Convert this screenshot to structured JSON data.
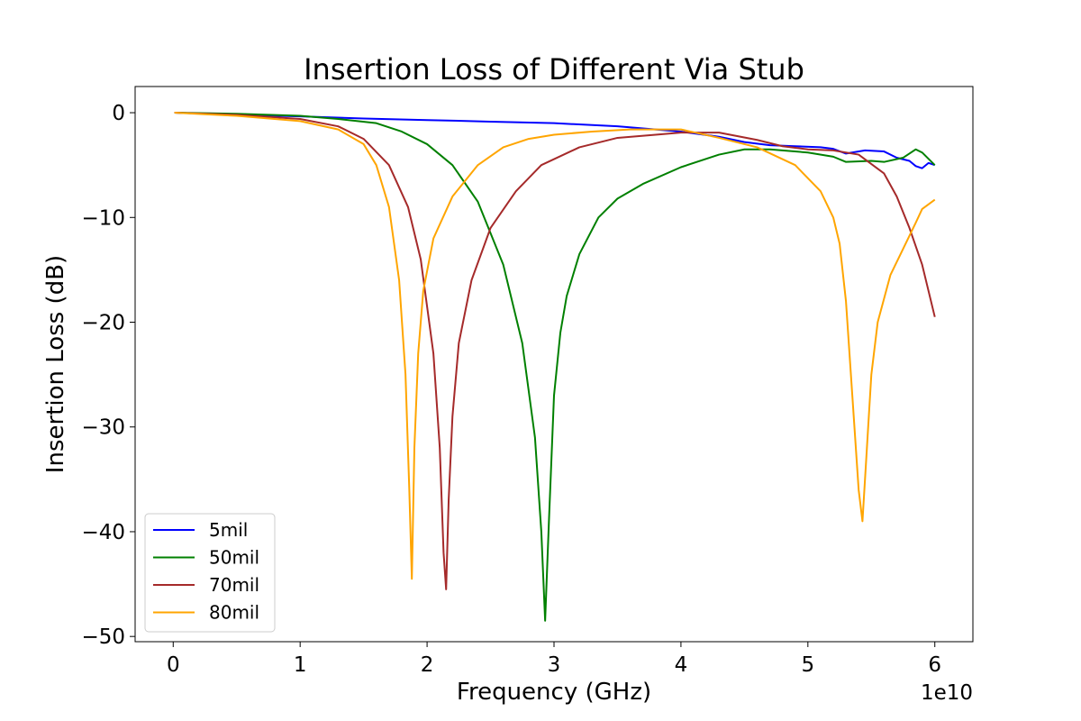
{
  "chart_data": {
    "type": "line",
    "title": "Insertion Loss of Different Via Stub",
    "xlabel": "Frequency (GHz)",
    "ylabel": "Insertion Loss (dB)",
    "x_offset_label": "1e10",
    "xlim": [
      -0.3,
      6.3
    ],
    "ylim": [
      -50.5,
      2.5
    ],
    "xticks": [
      0,
      1,
      2,
      3,
      4,
      5,
      6
    ],
    "xtick_labels": [
      "0",
      "1",
      "2",
      "3",
      "4",
      "5",
      "6"
    ],
    "yticks": [
      0,
      -10,
      -20,
      -30,
      -40,
      -50
    ],
    "ytick_labels": [
      "0",
      "−10",
      "−20",
      "−30",
      "−40",
      "−50"
    ],
    "grid": false,
    "legend_position": "lower-left",
    "series": [
      {
        "name": "5mil",
        "color": "#0000ff",
        "x": [
          0.01,
          0.5,
          1.0,
          1.5,
          2.0,
          2.5,
          3.0,
          3.5,
          4.0,
          4.3,
          4.5,
          4.7,
          4.9,
          5.1,
          5.2,
          5.3,
          5.45,
          5.6,
          5.7,
          5.8,
          5.85,
          5.9,
          5.95,
          6.0
        ],
        "y": [
          0,
          -0.2,
          -0.35,
          -0.55,
          -0.7,
          -0.85,
          -1.0,
          -1.3,
          -1.8,
          -2.3,
          -2.8,
          -3.1,
          -3.2,
          -3.3,
          -3.45,
          -3.9,
          -3.6,
          -3.7,
          -4.3,
          -4.6,
          -5.1,
          -5.3,
          -4.8,
          -5.0
        ]
      },
      {
        "name": "50mil",
        "color": "#008000",
        "x": [
          0.01,
          0.5,
          1.0,
          1.3,
          1.6,
          1.8,
          2.0,
          2.2,
          2.4,
          2.6,
          2.75,
          2.85,
          2.9,
          2.93,
          2.96,
          3.0,
          3.05,
          3.1,
          3.2,
          3.35,
          3.5,
          3.7,
          4.0,
          4.3,
          4.5,
          4.7,
          5.0,
          5.2,
          5.3,
          5.5,
          5.6,
          5.75,
          5.85,
          5.9,
          5.95,
          6.0
        ],
        "y": [
          0,
          -0.1,
          -0.3,
          -0.6,
          -1.0,
          -1.8,
          -3.0,
          -5.0,
          -8.5,
          -14.5,
          -22.0,
          -31.0,
          -40.0,
          -48.5,
          -39.0,
          -27.0,
          -21.0,
          -17.5,
          -13.5,
          -10.0,
          -8.2,
          -6.8,
          -5.2,
          -4.0,
          -3.5,
          -3.5,
          -3.8,
          -4.2,
          -4.7,
          -4.6,
          -4.7,
          -4.3,
          -3.5,
          -3.8,
          -4.4,
          -5.0
        ]
      },
      {
        "name": "70mil",
        "color": "#a52a2a",
        "x": [
          0.01,
          0.5,
          1.0,
          1.3,
          1.5,
          1.7,
          1.85,
          1.95,
          2.05,
          2.1,
          2.13,
          2.15,
          2.17,
          2.2,
          2.25,
          2.35,
          2.5,
          2.7,
          2.9,
          3.2,
          3.5,
          3.8,
          4.0,
          4.3,
          4.6,
          4.8,
          5.0,
          5.2,
          5.4,
          5.6,
          5.7,
          5.8,
          5.9,
          6.0
        ],
        "y": [
          0,
          -0.2,
          -0.6,
          -1.3,
          -2.5,
          -5.0,
          -9.0,
          -14.0,
          -23.0,
          -32.0,
          -42.0,
          -45.5,
          -37.0,
          -29.0,
          -22.0,
          -16.0,
          -11.0,
          -7.5,
          -5.0,
          -3.3,
          -2.4,
          -2.1,
          -1.9,
          -1.9,
          -2.6,
          -3.2,
          -3.5,
          -3.6,
          -4.0,
          -5.8,
          -8.0,
          -11.0,
          -14.5,
          -19.5
        ]
      },
      {
        "name": "80mil",
        "color": "#ffa500",
        "x": [
          0.01,
          0.5,
          1.0,
          1.3,
          1.5,
          1.6,
          1.7,
          1.78,
          1.83,
          1.86,
          1.88,
          1.9,
          1.93,
          1.97,
          2.05,
          2.2,
          2.4,
          2.6,
          2.8,
          3.0,
          3.3,
          3.6,
          4.0,
          4.3,
          4.6,
          4.9,
          5.1,
          5.2,
          5.25,
          5.3,
          5.35,
          5.4,
          5.43,
          5.47,
          5.5,
          5.55,
          5.65,
          5.75,
          5.85,
          5.9,
          6.0
        ],
        "y": [
          0,
          -0.3,
          -0.8,
          -1.6,
          -3.0,
          -5.0,
          -9.0,
          -16.0,
          -25.0,
          -36.0,
          -44.5,
          -32.0,
          -23.0,
          -17.0,
          -12.0,
          -8.0,
          -5.0,
          -3.3,
          -2.5,
          -2.1,
          -1.8,
          -1.6,
          -1.6,
          -2.4,
          -3.3,
          -5.0,
          -7.5,
          -10.0,
          -12.5,
          -18.0,
          -27.0,
          -36.0,
          -39.0,
          -31.0,
          -25.0,
          -20.0,
          -15.5,
          -13.0,
          -10.5,
          -9.2,
          -8.3
        ]
      }
    ]
  }
}
